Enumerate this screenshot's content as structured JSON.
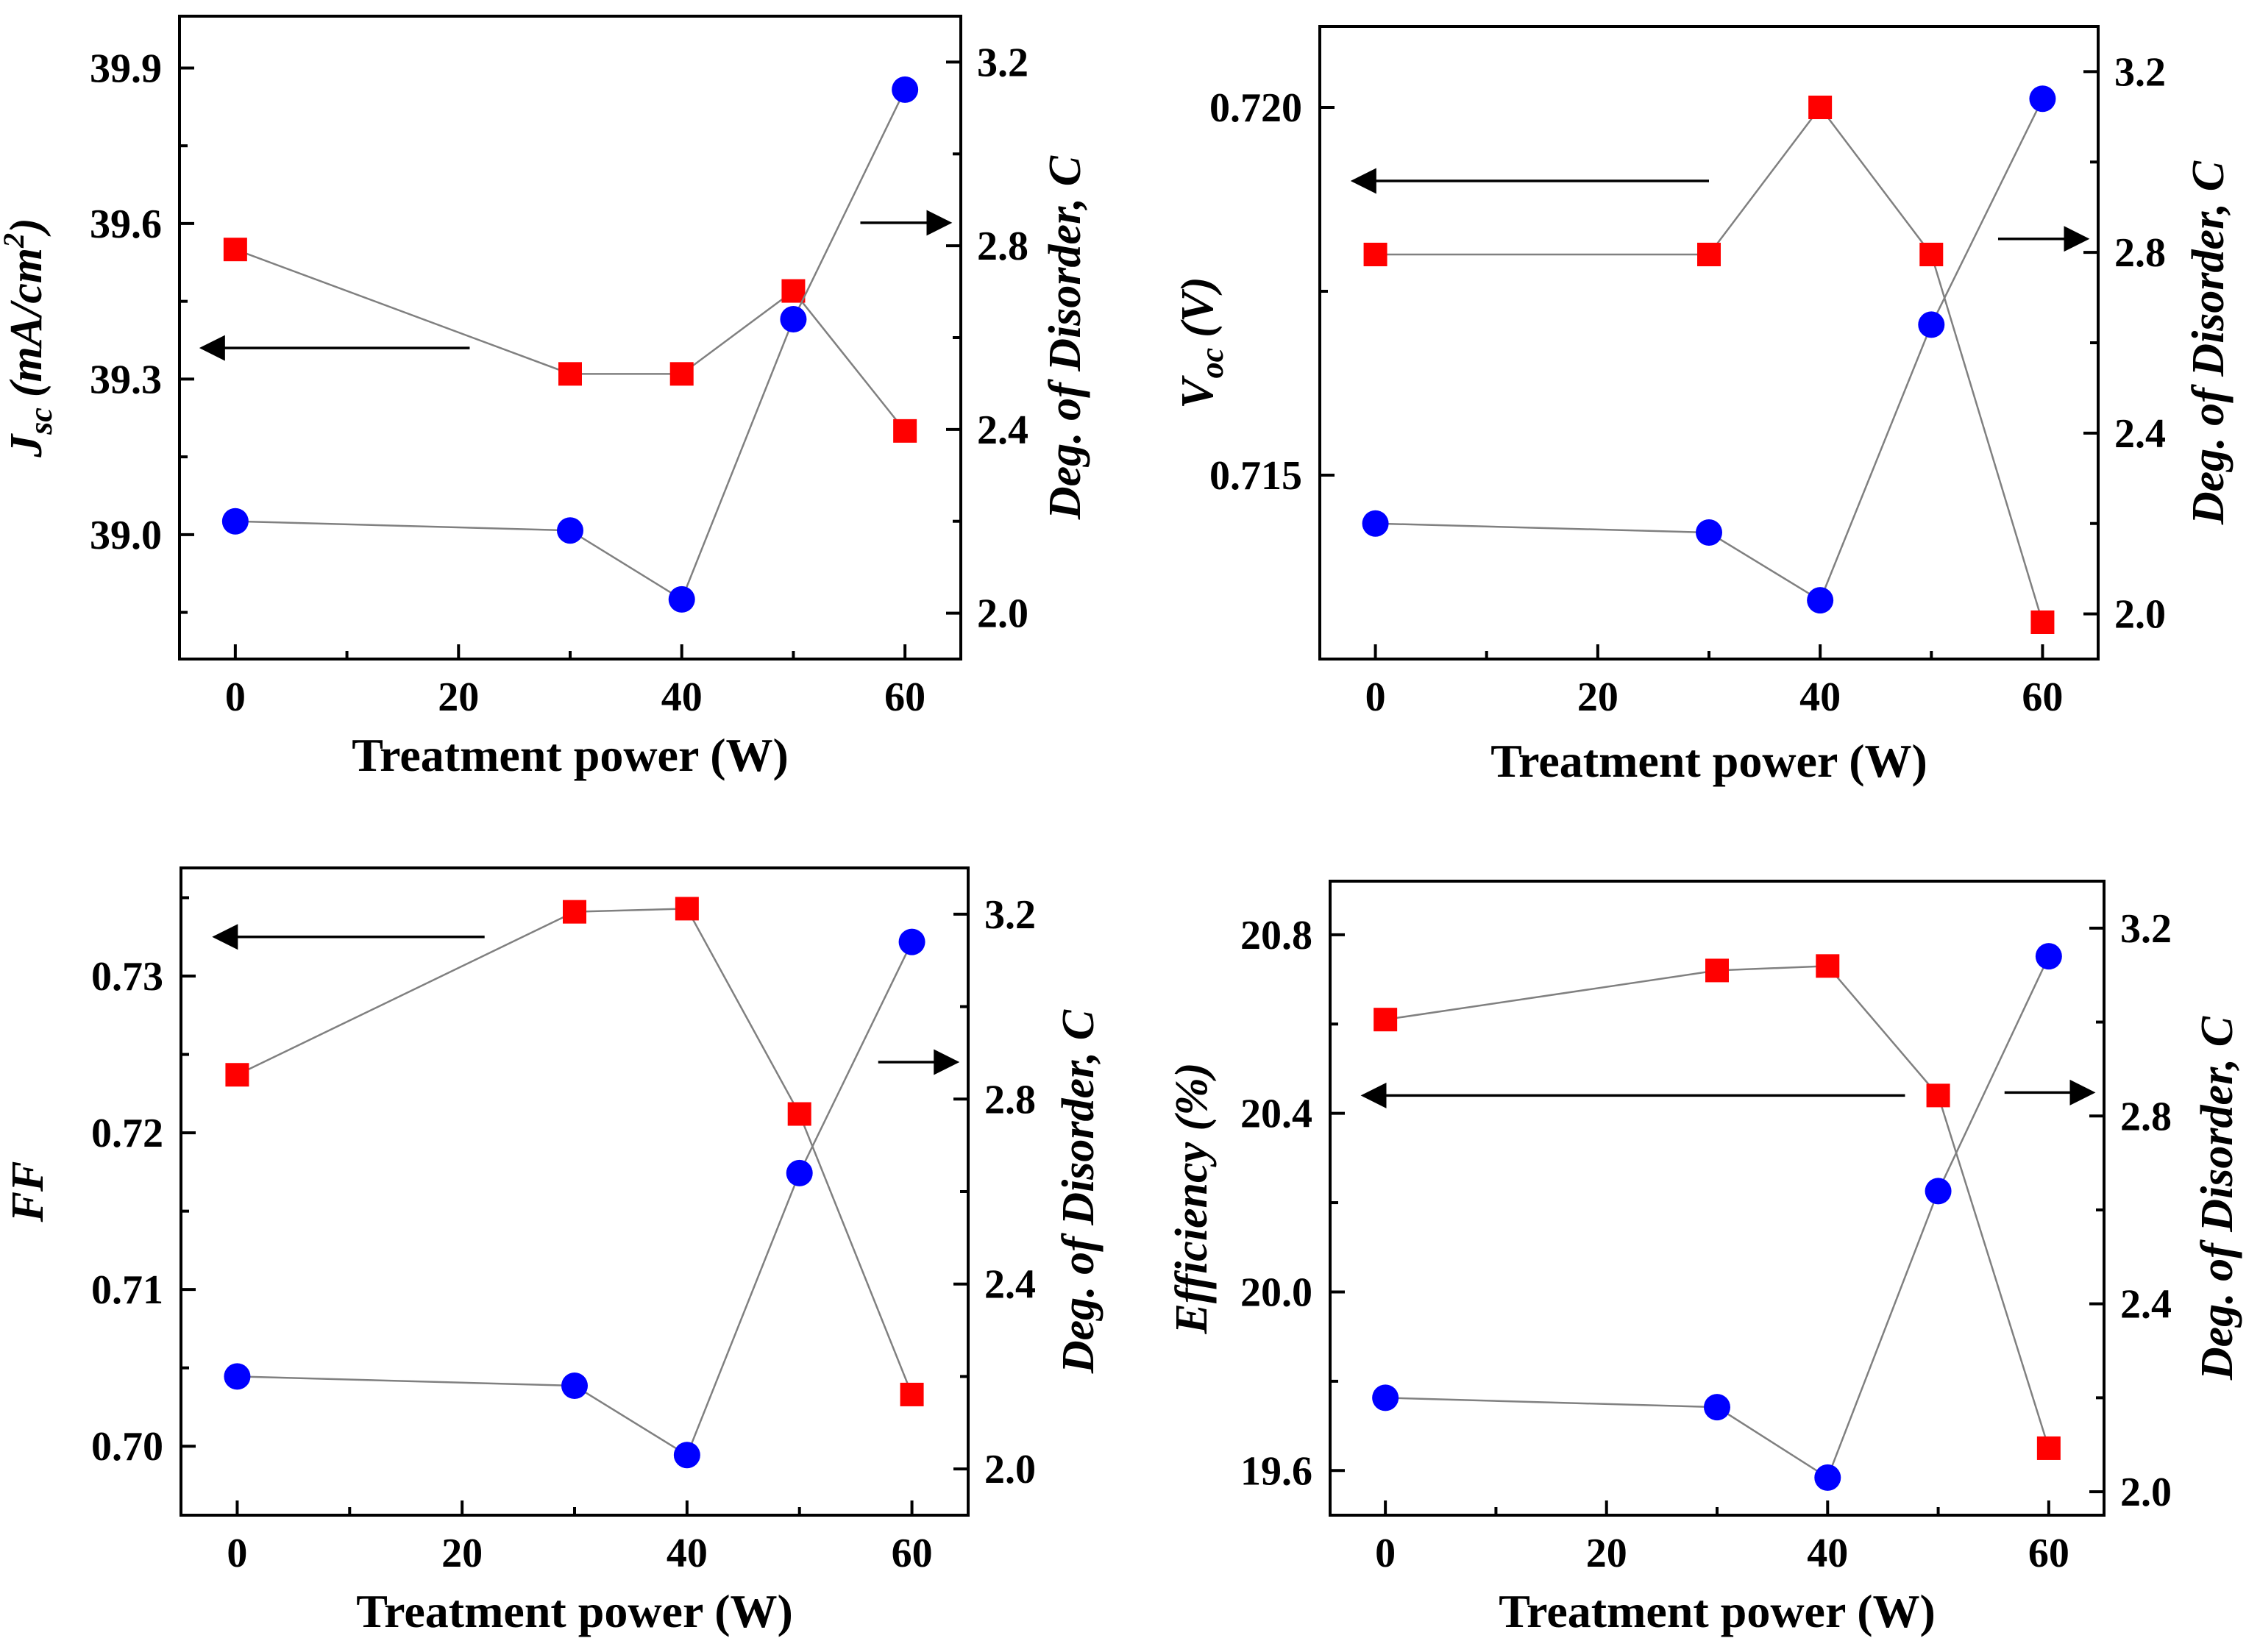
{
  "colors": {
    "red_series": "#ff0000",
    "blue_series": "#0000ff",
    "axis": "#000000",
    "connector": "#808080"
  },
  "x_axis_title": "Treatment power (W)",
  "chart_data": [
    {
      "type": "line",
      "panel": "top-left",
      "xlabel": "Treatment power (W)",
      "xlim": [
        -5,
        65
      ],
      "x_ticks": [
        "0",
        "20",
        "40",
        "60"
      ],
      "ylabel_main": "J",
      "ylabel_sub": "sc",
      "ylabel_units": "(mA/cm",
      "ylabel_sup": "2",
      "ylabel_close": ")",
      "ylim_left": [
        38.76,
        40.0
      ],
      "y_ticks_left": [
        "39.0",
        "39.3",
        "39.6",
        "39.9"
      ],
      "ylabel_right": "Deg. of Disorder, C",
      "ylim_right": [
        1.9,
        3.3
      ],
      "y_ticks_right": [
        "2.0",
        "2.4",
        "2.8",
        "3.2"
      ],
      "x": [
        0,
        30,
        40,
        50,
        60
      ],
      "series": [
        {
          "name": "Jsc",
          "axis": "left",
          "marker": "square",
          "values": [
            39.55,
            39.31,
            39.31,
            39.47,
            39.2
          ]
        },
        {
          "name": "Degree of disorder C",
          "axis": "right",
          "marker": "circle",
          "values": [
            2.2,
            2.18,
            2.03,
            2.64,
            3.14
          ]
        }
      ],
      "arrows": [
        {
          "direction": "left",
          "from": [
            21,
            39.36
          ],
          "to": [
            -3,
            39.36
          ]
        },
        {
          "direction": "right",
          "from": [
            56,
            2.85
          ],
          "to": [
            64,
            2.85
          ]
        }
      ]
    },
    {
      "type": "line",
      "panel": "top-right",
      "xlabel": "Treatment power (W)",
      "xlim": [
        -5,
        65
      ],
      "x_ticks": [
        "0",
        "20",
        "40",
        "60"
      ],
      "ylabel_main": "V",
      "ylabel_sub": "oc",
      "ylabel_units": "(V)",
      "ylim_left": [
        0.7125,
        0.7211
      ],
      "y_ticks_left": [
        "0.715",
        "0.720"
      ],
      "ylabel_right": "Deg. of Disorder, C",
      "ylim_right": [
        1.9,
        3.3
      ],
      "y_ticks_right": [
        "2.0",
        "2.4",
        "2.8",
        "3.2"
      ],
      "x": [
        0,
        30,
        40,
        50,
        60
      ],
      "series": [
        {
          "name": "Voc",
          "axis": "left",
          "marker": "square",
          "values": [
            0.718,
            0.718,
            0.72,
            0.718,
            0.713
          ]
        },
        {
          "name": "Degree of disorder C",
          "axis": "right",
          "marker": "circle",
          "values": [
            2.2,
            2.18,
            2.03,
            2.64,
            3.14
          ]
        }
      ],
      "arrows": [
        {
          "direction": "left",
          "from": [
            30,
            0.719
          ],
          "to": [
            -2,
            0.719
          ]
        },
        {
          "direction": "right",
          "from": [
            56,
            2.83
          ],
          "to": [
            64,
            2.83
          ]
        }
      ]
    },
    {
      "type": "line",
      "panel": "bottom-left",
      "xlabel": "Treatment power (W)",
      "xlim": [
        -5,
        65
      ],
      "x_ticks": [
        "0",
        "20",
        "40",
        "60"
      ],
      "ylabel_main": "FF",
      "ylim_left": [
        0.6956,
        0.7369
      ],
      "y_ticks_left": [
        "0.70",
        "0.71",
        "0.72",
        "0.73"
      ],
      "ylabel_right": "Deg. of Disorder, C",
      "ylim_right": [
        1.9,
        3.3
      ],
      "y_ticks_right": [
        "2.0",
        "2.4",
        "2.8",
        "3.2"
      ],
      "x": [
        0,
        30,
        40,
        50,
        60
      ],
      "series": [
        {
          "name": "FF",
          "axis": "left",
          "marker": "square",
          "values": [
            0.7237,
            0.7341,
            0.7343,
            0.7212,
            0.7033
          ]
        },
        {
          "name": "Degree of disorder C",
          "axis": "right",
          "marker": "circle",
          "values": [
            2.2,
            2.18,
            2.03,
            2.64,
            3.14
          ]
        }
      ],
      "arrows": [
        {
          "direction": "left",
          "from": [
            22,
            0.7325
          ],
          "to": [
            -2,
            0.7325
          ]
        },
        {
          "direction": "right",
          "from": [
            57,
            2.88
          ],
          "to": [
            64,
            2.88
          ]
        }
      ]
    },
    {
      "type": "line",
      "panel": "bottom-right",
      "xlabel": "Treatment power (W)",
      "xlim": [
        -5,
        65
      ],
      "x_ticks": [
        "0",
        "20",
        "40",
        "60"
      ],
      "ylabel_main": "Efficiency (%)",
      "ylim_left": [
        19.5,
        20.92
      ],
      "y_ticks_left": [
        "19.6",
        "20.0",
        "20.4",
        "20.8"
      ],
      "ylabel_right": "Deg. of Disorder, C",
      "ylim_right": [
        1.95,
        3.3
      ],
      "y_ticks_right": [
        "2.0",
        "2.4",
        "2.8",
        "3.2"
      ],
      "x": [
        0,
        30,
        40,
        50,
        60
      ],
      "series": [
        {
          "name": "Efficiency",
          "axis": "left",
          "marker": "square",
          "values": [
            20.61,
            20.72,
            20.73,
            20.44,
            19.65
          ]
        },
        {
          "name": "Degree of disorder C",
          "axis": "right",
          "marker": "circle",
          "values": [
            2.2,
            2.18,
            2.03,
            2.64,
            3.14
          ]
        }
      ],
      "arrows": [
        {
          "direction": "left",
          "from": [
            47,
            20.44
          ],
          "to": [
            -2,
            20.44
          ]
        },
        {
          "direction": "right",
          "from": [
            56,
            2.85
          ],
          "to": [
            64,
            2.85
          ]
        }
      ]
    }
  ]
}
